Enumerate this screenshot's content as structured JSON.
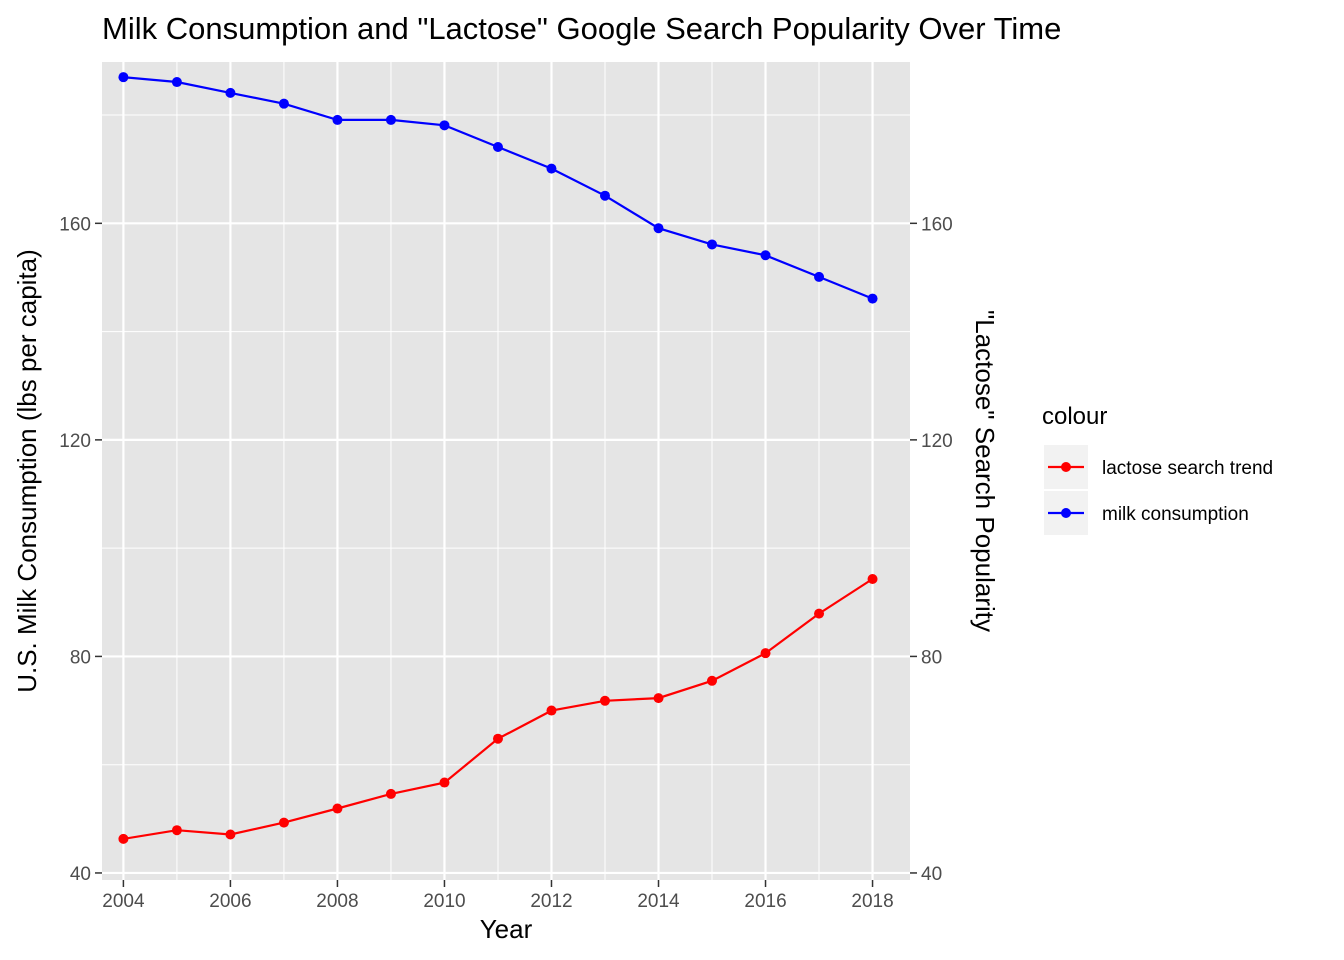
{
  "chart_data": {
    "type": "line",
    "title": "Milk Consumption and \"Lactose\" Google Search Popularity Over Time",
    "xlabel": "Year",
    "ylabel": "U.S. Milk Consumption (lbs per capita)",
    "y2label": "\"Lactose\" Search Popularity",
    "x": [
      2004,
      2005,
      2006,
      2007,
      2008,
      2009,
      2010,
      2011,
      2012,
      2013,
      2014,
      2015,
      2016,
      2017,
      2018
    ],
    "x_ticks": [
      2004,
      2006,
      2008,
      2010,
      2012,
      2014,
      2016,
      2018
    ],
    "x_tick_labels": [
      "2004",
      "2006",
      "2008",
      "2010",
      "2012",
      "2014",
      "2016",
      "2018"
    ],
    "xlim": [
      2003.6,
      2018.7
    ],
    "ylim": [
      38.7,
      189.8
    ],
    "y_ticks": [
      40,
      80,
      120,
      160
    ],
    "y_tick_labels": [
      "40",
      "80",
      "120",
      "160"
    ],
    "y2_ticks": [
      40,
      80,
      120,
      160
    ],
    "y2_tick_labels": [
      "40",
      "80",
      "120",
      "160"
    ],
    "grid": true,
    "background": "#e5e5e5",
    "legend": {
      "title": "colour",
      "position": "right"
    },
    "series": [
      {
        "name": "lactose search trend",
        "color": "#ff0000",
        "values": [
          46.3,
          47.9,
          47.1,
          49.3,
          51.9,
          54.6,
          56.7,
          64.8,
          70.0,
          71.8,
          72.3,
          75.5,
          80.6,
          87.9,
          94.3
        ]
      },
      {
        "name": "milk consumption",
        "color": "#0000ff",
        "values": [
          187.0,
          186.1,
          184.1,
          182.1,
          179.1,
          179.1,
          178.1,
          174.1,
          170.1,
          165.1,
          159.1,
          156.1,
          154.1,
          150.1,
          146.1
        ]
      }
    ]
  }
}
